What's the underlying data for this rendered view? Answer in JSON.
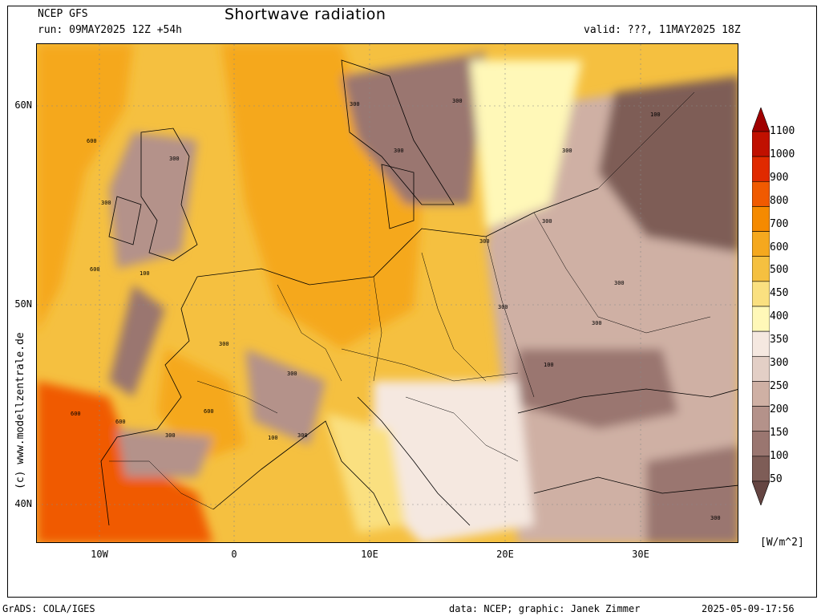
{
  "header": {
    "model": "NCEP GFS",
    "run": "run: 09MAY2025 12Z +54h",
    "title": "Shortwave radiation",
    "valid": "valid: ???, 11MAY2025 18Z"
  },
  "axes": {
    "lat_labels": [
      "60N",
      "50N",
      "40N"
    ],
    "lon_labels": [
      "10W",
      "0",
      "10E",
      "20E",
      "30E"
    ]
  },
  "colorbar": {
    "levels": [
      "1100",
      "1000",
      "900",
      "800",
      "700",
      "600",
      "500",
      "450",
      "400",
      "350",
      "300",
      "250",
      "200",
      "150",
      "100",
      "50"
    ],
    "colors": [
      "#a00000",
      "#c01000",
      "#e02a00",
      "#f05a00",
      "#f58a00",
      "#f5a81e",
      "#f5c040",
      "#fae080",
      "#fff8b8",
      "#f5e8e0",
      "#e3cfc6",
      "#cfb0a4",
      "#b4928a",
      "#9a7670",
      "#7e5d57",
      "#654542"
    ],
    "unit": "[W/m^2]"
  },
  "contour_labels": [
    "600",
    "300",
    "100",
    "600",
    "300",
    "300",
    "100",
    "300",
    "300",
    "300",
    "300",
    "300",
    "300",
    "100",
    "300",
    "300",
    "300",
    "300",
    "600",
    "600",
    "600",
    "300",
    "100",
    "300",
    "300"
  ],
  "side_credit": "(c)  www.modellzentrale.de",
  "footer": {
    "left": "GrADS: COLA/IGES",
    "center": "data: NCEP; graphic: Janek Zimmer",
    "right": "2025-05-09-17:56"
  }
}
